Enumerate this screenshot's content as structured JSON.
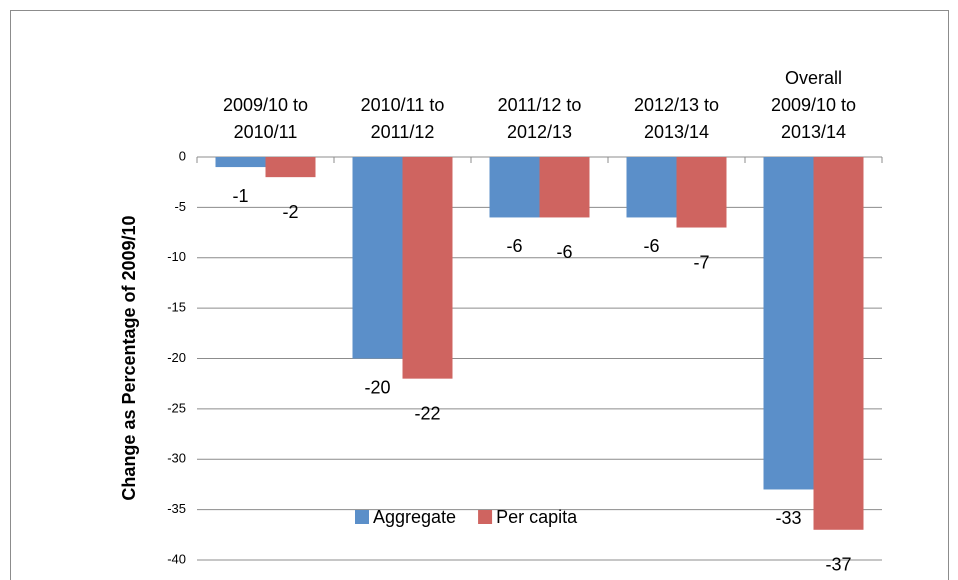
{
  "chart_data": {
    "type": "bar",
    "y_axis_label": "Change as Percentage of 2009/10",
    "categories": [
      "2009/10 to\n2010/11",
      "2010/11 to\n2011/12",
      "2011/12 to\n2012/13",
      "2012/13 to\n2013/14",
      "Overall\n2009/10 to\n2013/14"
    ],
    "series": [
      {
        "name": "Aggregate",
        "color": "#5b8fc9",
        "values": [
          -1,
          -20,
          -6,
          -6,
          -33
        ]
      },
      {
        "name": "Per capita",
        "color": "#cf6460",
        "values": [
          -2,
          -22,
          -6,
          -7,
          -37
        ]
      }
    ],
    "ylim": [
      0,
      -40
    ],
    "yticks": [
      0,
      -5,
      -10,
      -15,
      -20,
      -25,
      -30,
      -35,
      -40
    ],
    "grid": true,
    "legend": "bottom"
  }
}
